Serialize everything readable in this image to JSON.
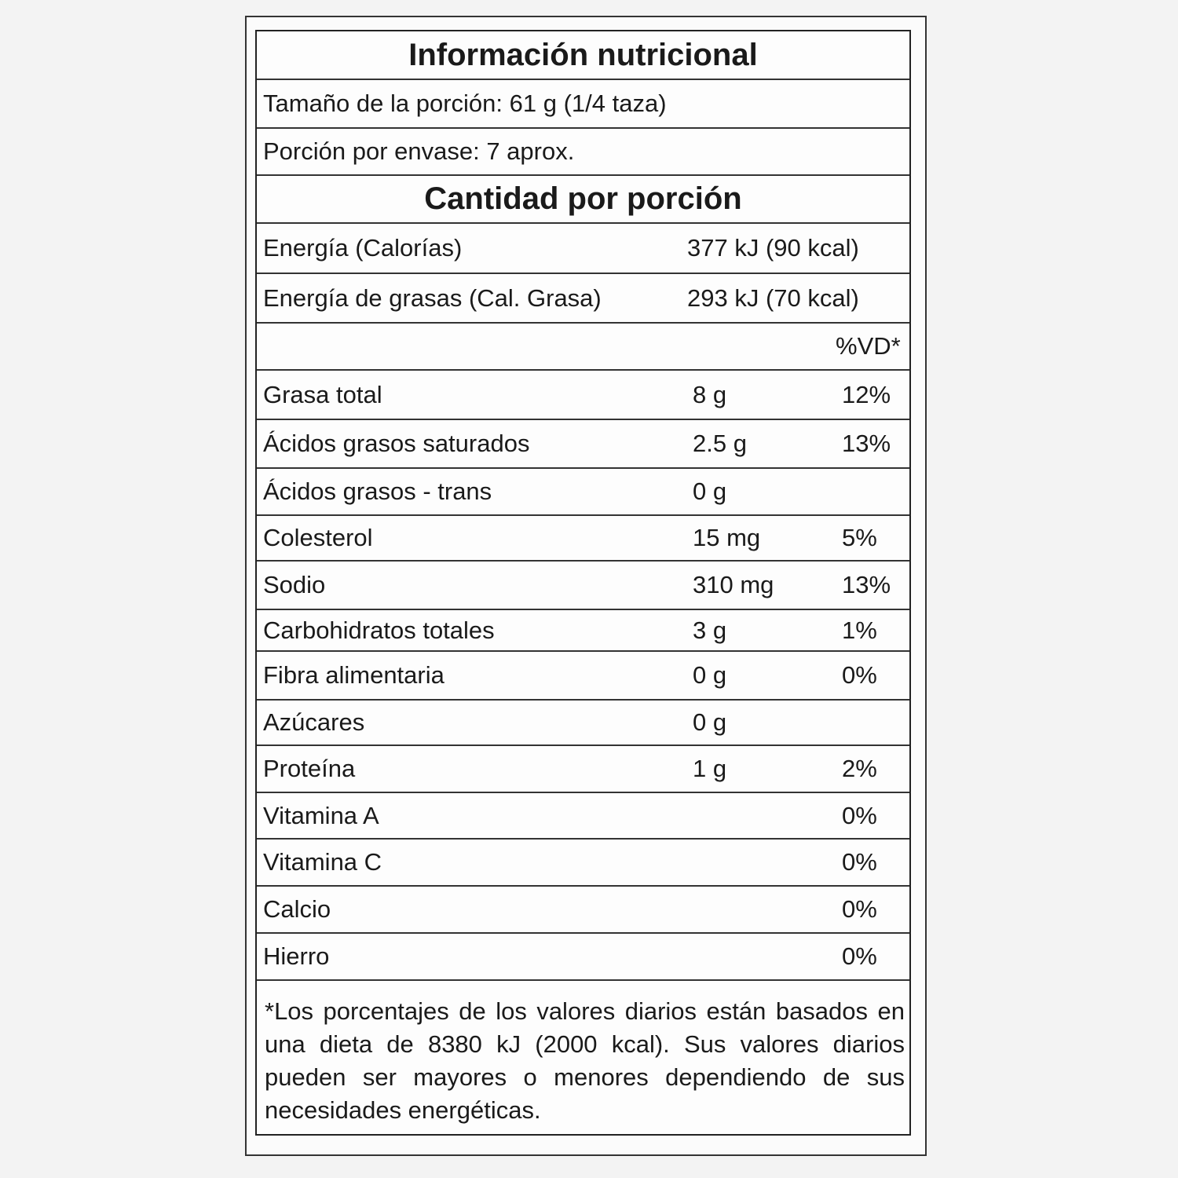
{
  "title": "Información nutricional",
  "serving_size": "Tamaño de la porción: 61 g (1/4 taza)",
  "servings_per_container": "Porción por envase: 7 aprox.",
  "amount_header": "Cantidad por porción",
  "energy": [
    {
      "label": "Energía (Calorías)",
      "value": "377 kJ (90 kcal)"
    },
    {
      "label": "Energía de grasas (Cal. Grasa)",
      "value": "293 kJ (70 kcal)"
    }
  ],
  "dv_header": "%VD*",
  "nutrients": [
    {
      "label": "Grasa total",
      "amount": "8 g",
      "dv": "12%"
    },
    {
      "label": "Ácidos grasos saturados",
      "amount": "2.5 g",
      "dv": "13%"
    },
    {
      "label": "Ácidos grasos - trans",
      "amount": "0 g",
      "dv": ""
    },
    {
      "label": "Colesterol",
      "amount": "15 mg",
      "dv": "5%"
    },
    {
      "label": "Sodio",
      "amount": "310 mg",
      "dv": "13%"
    },
    {
      "label": "Carbohidratos totales",
      "amount": "3 g",
      "dv": "1%"
    },
    {
      "label": "Fibra alimentaria",
      "amount": "0 g",
      "dv": "0%"
    },
    {
      "label": "Azúcares",
      "amount": "0 g",
      "dv": ""
    },
    {
      "label": "Proteína",
      "amount": "1 g",
      "dv": "2%"
    },
    {
      "label": "Vitamina A",
      "amount": "",
      "dv": "0%"
    },
    {
      "label": "Vitamina C",
      "amount": "",
      "dv": "0%"
    },
    {
      "label": "Calcio",
      "amount": "",
      "dv": "0%"
    },
    {
      "label": "Hierro",
      "amount": "",
      "dv": "0%"
    }
  ],
  "footnote": "*Los porcentajes de los valores diarios están basados en una dieta de 8380 kJ (2000 kcal). Sus valores diarios pueden ser mayores o menores dependiendo de sus necesidades energéticas."
}
